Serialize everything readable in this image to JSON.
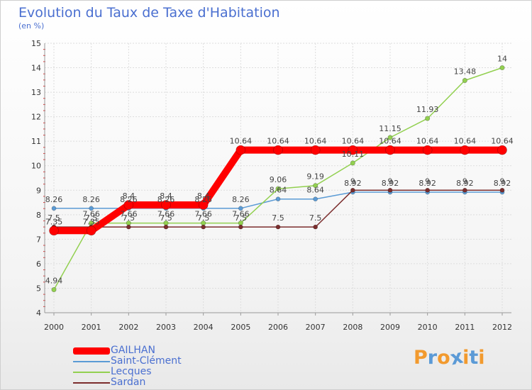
{
  "header": {
    "title": "Evolution du Taux de Taxe d'Habitation",
    "subtitle": "(en %)"
  },
  "brand": {
    "text": "Proxiti",
    "letter_colors": [
      "#f29a2e",
      "#5b9ad6",
      "#f29a2e",
      "#5b9ad6",
      "#f29a2e",
      "#5b9ad6",
      "#f29a2e"
    ]
  },
  "chart_data": {
    "type": "line",
    "title": "Evolution du Taux de Taxe d'Habitation",
    "ylabel": "(en %)",
    "xlabel": "",
    "x": [
      "2000",
      "2001",
      "2002",
      "2003",
      "2004",
      "2005",
      "2006",
      "2007",
      "2008",
      "2009",
      "2010",
      "2011",
      "2012"
    ],
    "ylim": [
      4,
      15
    ],
    "yticks": [
      "4",
      "5",
      "6",
      "7",
      "8",
      "9",
      "10",
      "11",
      "12",
      "13",
      "14",
      "15"
    ],
    "grid": true,
    "legend_position": "bottom-left",
    "series": [
      {
        "name": "GAILHAN",
        "color": "#ff0000",
        "values": [
          7.35,
          7.35,
          8.4,
          8.4,
          8.4,
          10.64,
          10.64,
          10.64,
          10.64,
          10.64,
          10.64,
          10.64,
          10.64
        ],
        "labels": [
          "7.35",
          "7.35",
          "8.4",
          "8.4",
          "8.4",
          "10.64",
          "10.64",
          "10.64",
          "10.64",
          "10.64",
          "10.64",
          "10.64",
          "10.64"
        ]
      },
      {
        "name": "Saint-Clément",
        "color": "#5b9bd5",
        "values": [
          8.26,
          8.26,
          8.26,
          8.26,
          8.26,
          8.26,
          8.64,
          8.64,
          8.92,
          8.92,
          8.92,
          8.92,
          8.92
        ],
        "labels": [
          "8.26",
          "8.26",
          "8.26",
          "8.26",
          "8.26",
          "8.26",
          "8.64",
          "8.64",
          "8.92",
          "8.92",
          "8.92",
          "8.92",
          "8.92"
        ]
      },
      {
        "name": "Lecques",
        "color": "#92d050",
        "values": [
          4.94,
          7.66,
          7.66,
          7.66,
          7.66,
          7.66,
          9.06,
          9.19,
          10.11,
          11.15,
          11.93,
          13.48,
          14
        ],
        "labels": [
          "4.94",
          "7.66",
          "7.66",
          "7.66",
          "7.66",
          "7.66",
          "9.06",
          "9.19",
          "10.11",
          "11.15",
          "11.93",
          "13.48",
          "14"
        ]
      },
      {
        "name": "Sardan",
        "color": "#7b2d2d",
        "values": [
          7.5,
          7.5,
          7.5,
          7.5,
          7.5,
          7.5,
          7.5,
          7.5,
          9,
          9,
          9,
          9,
          9
        ],
        "labels": [
          "7.5",
          "7.5",
          "7.5",
          "7.5",
          "7.5",
          "7.5",
          "7.5",
          "7.5",
          "9",
          "9",
          "9",
          "9",
          "9"
        ]
      }
    ]
  }
}
